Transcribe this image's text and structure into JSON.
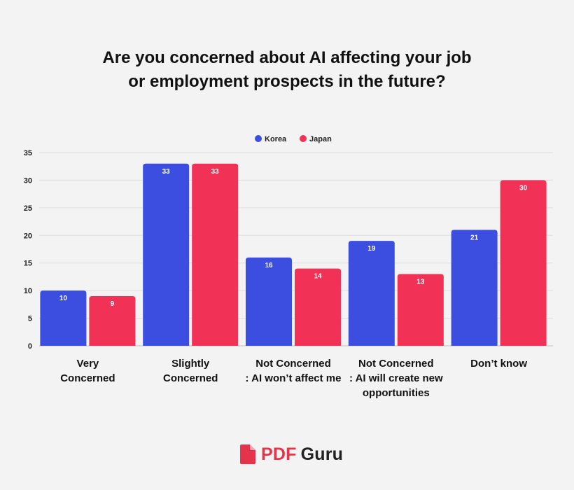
{
  "chart_data": {
    "type": "bar",
    "title_lines": [
      "Are you concerned about AI affecting your job",
      "or employment prospects in the future?"
    ],
    "categories": [
      [
        "Very",
        "Concerned"
      ],
      [
        "Slightly",
        "Concerned"
      ],
      [
        "Not Concerned",
        ": AI won’t affect me"
      ],
      [
        "Not Concerned",
        ": AI will create new",
        "opportunities"
      ],
      [
        "Don’t know"
      ]
    ],
    "series": [
      {
        "name": "Korea",
        "color": "#3b4ee0",
        "values": [
          10,
          33,
          16,
          19,
          21
        ]
      },
      {
        "name": "Japan",
        "color": "#f23157",
        "values": [
          9,
          33,
          14,
          13,
          30
        ]
      }
    ],
    "ylim": [
      0,
      35
    ],
    "yticks": [
      0,
      5,
      10,
      15,
      20,
      25,
      30,
      35
    ],
    "legend_position": "top-center",
    "grid": true
  },
  "branding": {
    "logo_part1": "PDF",
    "logo_part2": "Guru",
    "icon": "pdf-document-icon",
    "accent": "#e5334b"
  }
}
